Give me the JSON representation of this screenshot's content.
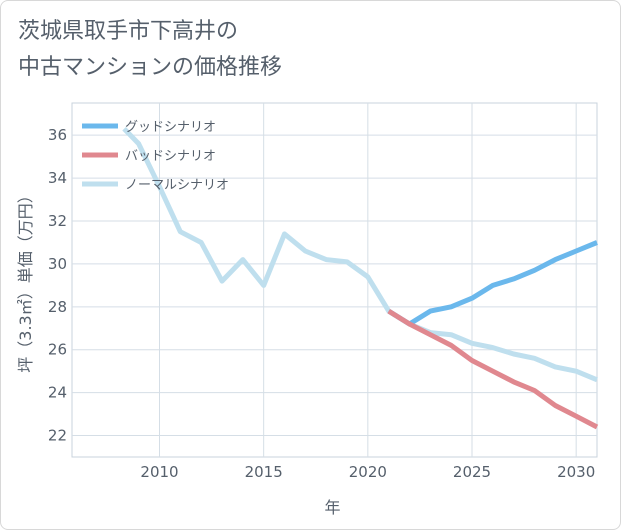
{
  "title_lines": [
    "茨城県取手市下高井の",
    "中古マンションの価格推移"
  ],
  "chart_data": {
    "type": "line",
    "title": "茨城県取手市下高井の中古マンションの価格推移",
    "xlabel": "年",
    "ylabel": "坪（3.3㎡）単価（万円）",
    "xlim": [
      2005.8,
      2031
    ],
    "ylim": [
      21,
      37.5
    ],
    "xticks": [
      2010,
      2015,
      2020,
      2025,
      2030
    ],
    "yticks": [
      22,
      24,
      26,
      28,
      30,
      32,
      34,
      36
    ],
    "legend_position": "top-left",
    "series": [
      {
        "name": "グッドシナリオ",
        "color": "#6bb8ec",
        "x": [
          2021,
          2022,
          2023,
          2024,
          2025,
          2026,
          2027,
          2028,
          2029,
          2030,
          2031
        ],
        "y": [
          27.8,
          27.2,
          27.8,
          28.0,
          28.4,
          29.0,
          29.3,
          29.7,
          30.2,
          30.6,
          31.0
        ]
      },
      {
        "name": "バッドシナリオ",
        "color": "#e0888f",
        "x": [
          2021,
          2022,
          2023,
          2024,
          2025,
          2026,
          2027,
          2028,
          2029,
          2030,
          2031
        ],
        "y": [
          27.8,
          27.2,
          26.7,
          26.2,
          25.5,
          25.0,
          24.5,
          24.1,
          23.4,
          22.9,
          22.4
        ]
      },
      {
        "name": "ノーマルシナリオ",
        "color": "#bfdfee",
        "x": [
          2008.3,
          2009,
          2010,
          2011,
          2012,
          2013,
          2014,
          2015,
          2016,
          2017,
          2018,
          2019,
          2020,
          2021,
          2022,
          2023,
          2024,
          2025,
          2026,
          2027,
          2028,
          2029,
          2030,
          2031
        ],
        "y": [
          36.3,
          35.6,
          33.6,
          31.5,
          31.0,
          29.2,
          30.2,
          29.0,
          31.4,
          30.6,
          30.2,
          30.1,
          29.4,
          27.8,
          27.2,
          26.8,
          26.7,
          26.3,
          26.1,
          25.8,
          25.6,
          25.2,
          25.0,
          24.6
        ]
      }
    ]
  }
}
